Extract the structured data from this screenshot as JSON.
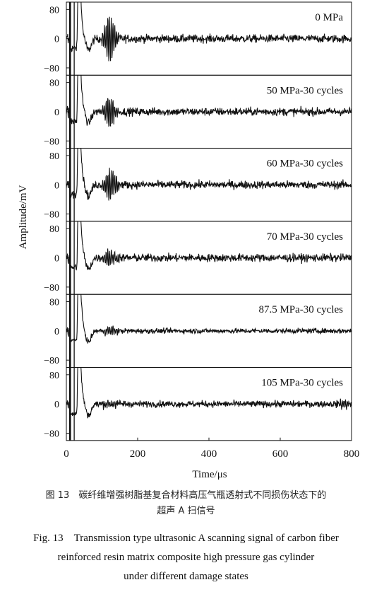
{
  "chart_data": {
    "type": "line",
    "xlabel": "Time/μs",
    "ylabel": "Amplitude/mV",
    "xlim": [
      0,
      800
    ],
    "ylim": [
      -100,
      100
    ],
    "x_ticks": [
      0,
      200,
      400,
      600,
      800
    ],
    "y_ticks": [
      80,
      0,
      -80
    ],
    "y_tick_labels": [
      "80",
      "0",
      "−80"
    ],
    "legend": "none",
    "grid": false,
    "panels": [
      {
        "label": "0 MPa",
        "noise": 5.5,
        "burst_amp": 65,
        "burst_center": 122,
        "burst_width": 13,
        "late_burst_amp": 0
      },
      {
        "label": "50 MPa-30 cycles",
        "noise": 5.5,
        "burst_amp": 42,
        "burst_center": 122,
        "burst_width": 13,
        "late_burst_amp": 0
      },
      {
        "label": "60 MPa-30 cycles",
        "noise": 5.5,
        "burst_amp": 42,
        "burst_center": 125,
        "burst_width": 13,
        "late_burst_amp": 0
      },
      {
        "label": "70 MPa-30 cycles",
        "noise": 5.5,
        "burst_amp": 22,
        "burst_center": 122,
        "burst_width": 13,
        "late_burst_amp": 0
      },
      {
        "label": "87.5 MPa-30 cycles",
        "noise": 3.5,
        "burst_amp": 13,
        "burst_center": 125,
        "burst_width": 15,
        "late_burst_amp": 0
      },
      {
        "label": "105 MPa-30 cycles",
        "noise": 4.5,
        "burst_amp": 7,
        "burst_center": 125,
        "burst_width": 25,
        "late_burst_amp": 10
      }
    ]
  },
  "caption": {
    "cn_line1": "图 13　碳纤维增强树脂基复合材料高压气瓶透射式不同损伤状态下的",
    "cn_line2": "超声 A 扫信号",
    "en_line1": "Fig. 13　Transmission type ultrasonic A scanning signal of carbon fiber",
    "en_line2": "reinforced resin matrix composite high pressure gas cylinder",
    "en_line3": "under different damage states"
  }
}
